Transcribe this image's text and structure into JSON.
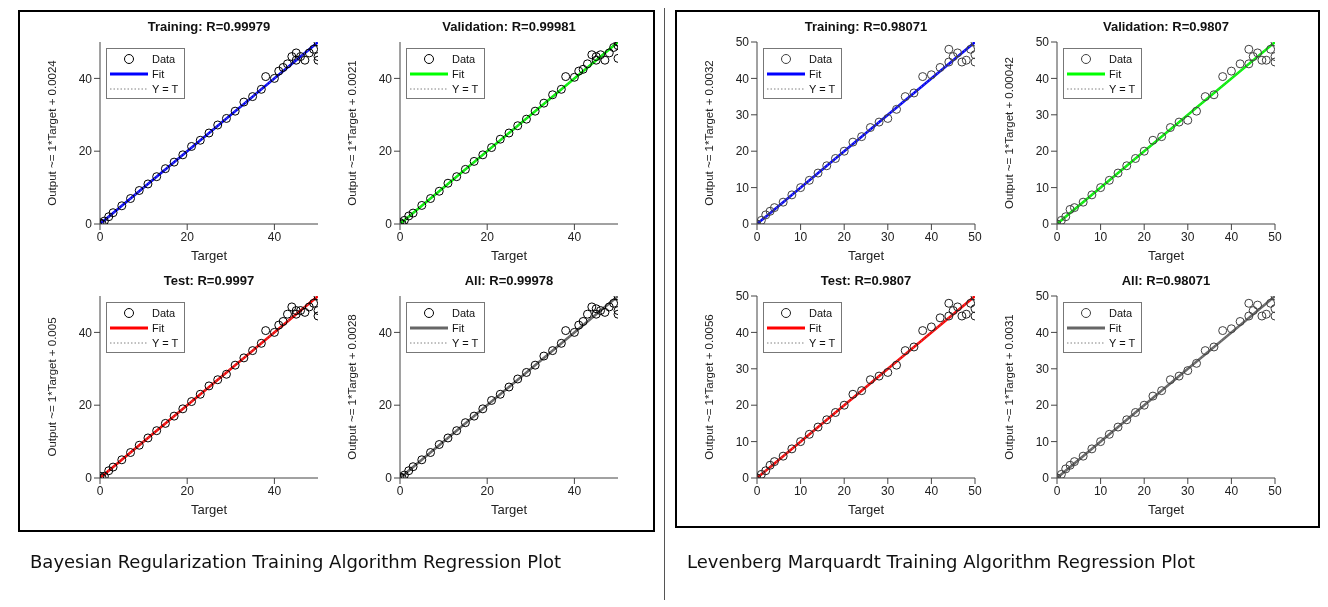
{
  "chart_data": [
    {
      "type": "scatter",
      "title": "Training: R=0.99979",
      "xlabel": "Target",
      "ylabel": "Output ~= 1*Target + 0.0024",
      "xlim": [
        0,
        50
      ],
      "ylim": [
        0,
        50
      ],
      "xticks": [
        0,
        20,
        40
      ],
      "yticks": [
        0,
        20,
        40
      ],
      "legend": "top left",
      "annotations": [
        "Bayesian Regularization Training Algorithm Regression Plot"
      ],
      "series": [
        {
          "name": "Data",
          "color": "#000000",
          "marker": "circle",
          "x": [
            0,
            0.5,
            1,
            2,
            3,
            5,
            7,
            9,
            11,
            13,
            15,
            17,
            19,
            21,
            23,
            25,
            27,
            29,
            31,
            33,
            35,
            37,
            38,
            40,
            41,
            42,
            43,
            44,
            45,
            45,
            46,
            47,
            48,
            49,
            50,
            50,
            50
          ],
          "values": [
            0.3,
            0,
            0.8,
            2,
            3.1,
            5,
            7,
            9.2,
            11,
            13,
            15.2,
            17,
            19,
            21.3,
            23,
            25,
            27.2,
            29,
            31,
            33.5,
            35,
            37,
            40.5,
            40,
            42,
            43,
            44,
            46,
            45,
            47,
            46,
            45,
            47,
            48,
            50,
            45,
            46
          ]
        },
        {
          "name": "Fit",
          "type": "line",
          "color": "#0000ff",
          "marker": "none",
          "line_style": "solid",
          "x": [
            0,
            50
          ],
          "values": [
            0,
            50
          ]
        },
        {
          "name": "Y = T",
          "type": "line",
          "color": "#808080",
          "marker": "none",
          "line_style": "dotted",
          "x": [
            0,
            50
          ],
          "values": [
            0,
            50
          ]
        }
      ]
    },
    {
      "type": "scatter",
      "title": "Validation: R=0.99981",
      "xlabel": "Target",
      "ylabel": "Output ~= 1*Target + 0.0021",
      "xlim": [
        0,
        50
      ],
      "ylim": [
        0,
        50
      ],
      "xticks": [
        0,
        20,
        40
      ],
      "yticks": [
        0,
        20,
        40
      ],
      "legend": "top left",
      "series": [
        {
          "name": "Data",
          "color": "#000000",
          "marker": "circle",
          "x": [
            0,
            0.5,
            1,
            2,
            3,
            5,
            7,
            9,
            11,
            13,
            15,
            17,
            19,
            21,
            23,
            25,
            27,
            29,
            31,
            33,
            35,
            37,
            38,
            40,
            41,
            42,
            43,
            44,
            45,
            45,
            46,
            47,
            48,
            49,
            50,
            50,
            50
          ],
          "values": [
            0.4,
            0,
            1,
            2.2,
            3,
            5.1,
            7,
            9,
            11.2,
            13,
            15,
            17.2,
            19,
            21,
            23.3,
            25,
            27,
            28.8,
            31,
            33.2,
            35.5,
            37,
            40.5,
            40.3,
            42,
            42.5,
            44,
            46.5,
            45,
            46,
            46.5,
            45,
            47,
            48.5,
            50,
            45.5,
            49
          ]
        },
        {
          "name": "Fit",
          "type": "line",
          "color": "#00ff00",
          "marker": "none",
          "line_style": "solid",
          "x": [
            0,
            50
          ],
          "values": [
            0,
            50
          ]
        },
        {
          "name": "Y = T",
          "type": "line",
          "color": "#808080",
          "marker": "none",
          "line_style": "dotted",
          "x": [
            0,
            50
          ],
          "values": [
            0,
            50
          ]
        }
      ]
    },
    {
      "type": "scatter",
      "title": "Test: R=0.9997",
      "xlabel": "Target",
      "ylabel": "Output ~= 1*Target + 0.005",
      "xlim": [
        0,
        50
      ],
      "ylim": [
        0,
        50
      ],
      "xticks": [
        0,
        20,
        40
      ],
      "yticks": [
        0,
        20,
        40
      ],
      "legend": "top left",
      "series": [
        {
          "name": "Data",
          "color": "#000000",
          "marker": "circle",
          "x": [
            0,
            0.5,
            1,
            2,
            3,
            5,
            7,
            9,
            11,
            13,
            15,
            17,
            19,
            21,
            23,
            25,
            27,
            29,
            31,
            33,
            35,
            37,
            38,
            40,
            41,
            42,
            43,
            44,
            45,
            45,
            46,
            47,
            48,
            49,
            50,
            50,
            50
          ],
          "values": [
            0.5,
            0,
            0.5,
            2,
            3,
            5,
            7,
            9,
            11,
            13,
            15,
            17,
            19,
            21,
            23,
            25.3,
            27,
            28.5,
            31,
            33,
            35,
            37,
            40.5,
            40,
            42,
            43,
            45,
            47,
            45,
            46,
            46,
            45.5,
            47,
            48,
            50,
            44.5,
            46
          ]
        },
        {
          "name": "Fit",
          "type": "line",
          "color": "#ff0000",
          "marker": "none",
          "line_style": "solid",
          "x": [
            0,
            50
          ],
          "values": [
            0,
            50
          ]
        },
        {
          "name": "Y = T",
          "type": "line",
          "color": "#808080",
          "marker": "none",
          "line_style": "dotted",
          "x": [
            0,
            50
          ],
          "values": [
            0,
            50
          ]
        }
      ]
    },
    {
      "type": "scatter",
      "title": "All: R=0.99978",
      "xlabel": "Target",
      "ylabel": "Output ~= 1*Target + 0.0028",
      "xlim": [
        0,
        50
      ],
      "ylim": [
        0,
        50
      ],
      "xticks": [
        0,
        20,
        40
      ],
      "yticks": [
        0,
        20,
        40
      ],
      "legend": "top left",
      "series": [
        {
          "name": "Data",
          "color": "#000000",
          "marker": "circle",
          "x": [
            0,
            0.5,
            1,
            2,
            3,
            5,
            7,
            9,
            11,
            13,
            15,
            17,
            19,
            21,
            23,
            25,
            27,
            29,
            31,
            33,
            35,
            37,
            38,
            40,
            41,
            42,
            43,
            44,
            45,
            45,
            46,
            47,
            48,
            49,
            50,
            50,
            50
          ],
          "values": [
            0.3,
            0,
            0.8,
            2,
            3.1,
            5,
            7,
            9.2,
            11,
            13,
            15.2,
            17,
            19,
            21.3,
            23,
            25,
            27.2,
            29,
            31,
            33.5,
            35,
            37,
            40.5,
            40,
            42,
            43,
            45,
            47,
            45,
            46.5,
            46,
            45.5,
            47,
            48,
            50,
            45,
            46
          ]
        },
        {
          "name": "Fit",
          "type": "line",
          "color": "#666666",
          "marker": "none",
          "line_style": "solid",
          "x": [
            0,
            50
          ],
          "values": [
            0,
            50
          ]
        },
        {
          "name": "Y = T",
          "type": "line",
          "color": "#808080",
          "marker": "none",
          "line_style": "dotted",
          "x": [
            0,
            50
          ],
          "values": [
            0,
            50
          ]
        }
      ]
    },
    {
      "type": "scatter",
      "title": "Training: R=0.98071",
      "xlabel": "Target",
      "ylabel": "Output ~= 1*Target + 0.0032",
      "xlim": [
        0,
        50
      ],
      "ylim": [
        0,
        50
      ],
      "xticks": [
        0,
        10,
        20,
        30,
        40,
        50
      ],
      "yticks": [
        0,
        10,
        20,
        30,
        40,
        50
      ],
      "legend": "top left",
      "annotations": [
        "Levenberg Marquardt Training Algorithm Regression Plot"
      ],
      "series": [
        {
          "name": "Data",
          "color": "#404040",
          "marker": "circle",
          "x": [
            0,
            1,
            2,
            3,
            4,
            6,
            8,
            10,
            12,
            14,
            16,
            18,
            20,
            22,
            24,
            26,
            28,
            30,
            32,
            34,
            36,
            38,
            40,
            42,
            44,
            44,
            45,
            46,
            47,
            48,
            49,
            50,
            50,
            50
          ],
          "values": [
            0,
            1,
            2.5,
            3.5,
            4.5,
            6,
            8,
            10,
            12,
            14,
            16,
            18,
            20,
            22.5,
            24,
            26.5,
            28,
            29,
            31.5,
            35,
            36,
            40.5,
            41,
            43,
            48,
            44.5,
            46,
            47,
            44.5,
            45,
            48,
            50,
            44.5,
            46.5
          ]
        },
        {
          "name": "Fit",
          "type": "line",
          "color": "#0000ff",
          "marker": "none",
          "line_style": "solid",
          "x": [
            0,
            50
          ],
          "values": [
            0,
            50
          ]
        },
        {
          "name": "Y = T",
          "type": "line",
          "color": "#808080",
          "marker": "none",
          "line_style": "dotted",
          "x": [
            0,
            50
          ],
          "values": [
            0,
            50
          ]
        }
      ]
    },
    {
      "type": "scatter",
      "title": "Validation: R=0.9807",
      "xlabel": "Target",
      "ylabel": "Output ~= 1*Target + 0.00042",
      "xlim": [
        0,
        50
      ],
      "ylim": [
        0,
        50
      ],
      "xticks": [
        0,
        10,
        20,
        30,
        40,
        50
      ],
      "yticks": [
        0,
        10,
        20,
        30,
        40,
        50
      ],
      "legend": "top left",
      "series": [
        {
          "name": "Data",
          "color": "#404040",
          "marker": "circle",
          "x": [
            0,
            1,
            2,
            3,
            4,
            6,
            8,
            10,
            12,
            14,
            16,
            18,
            20,
            22,
            24,
            26,
            28,
            30,
            32,
            34,
            36,
            38,
            40,
            42,
            44,
            44,
            45,
            46,
            47,
            48,
            49,
            50,
            50,
            50
          ],
          "values": [
            0,
            1,
            2,
            4,
            4.5,
            6,
            8,
            10,
            12,
            14,
            16,
            18,
            20,
            23,
            24,
            26.5,
            28,
            28.5,
            31,
            35,
            35.5,
            40.5,
            42,
            44,
            48,
            44,
            46,
            47,
            45,
            45,
            48,
            50,
            44.5,
            46
          ]
        },
        {
          "name": "Fit",
          "type": "line",
          "color": "#00ff00",
          "marker": "none",
          "line_style": "solid",
          "x": [
            0,
            50
          ],
          "values": [
            0,
            50
          ]
        },
        {
          "name": "Y = T",
          "type": "line",
          "color": "#808080",
          "marker": "none",
          "line_style": "dotted",
          "x": [
            0,
            50
          ],
          "values": [
            0,
            50
          ]
        }
      ]
    },
    {
      "type": "scatter",
      "title": "Test: R=0.9807",
      "xlabel": "Target",
      "ylabel": "Output ~= 1*Target + 0.0056",
      "xlim": [
        0,
        50
      ],
      "ylim": [
        0,
        50
      ],
      "xticks": [
        0,
        10,
        20,
        30,
        40,
        50
      ],
      "yticks": [
        0,
        10,
        20,
        30,
        40,
        50
      ],
      "legend": "top left",
      "series": [
        {
          "name": "Data",
          "color": "#202020",
          "marker": "circle",
          "x": [
            0,
            1,
            2,
            3,
            4,
            6,
            8,
            10,
            12,
            14,
            16,
            18,
            20,
            22,
            24,
            26,
            28,
            30,
            32,
            34,
            36,
            38,
            40,
            42,
            44,
            44,
            45,
            46,
            47,
            48,
            49,
            50,
            50,
            50
          ],
          "values": [
            0,
            1,
            2,
            3.5,
            4.5,
            6,
            8,
            10,
            12,
            14,
            16,
            18,
            20,
            23,
            24,
            27,
            28,
            29,
            31,
            35,
            36,
            40.5,
            41.5,
            44,
            48,
            44.5,
            46,
            47,
            44.5,
            45,
            48,
            50,
            44.5,
            46.5
          ]
        },
        {
          "name": "Fit",
          "type": "line",
          "color": "#ff0000",
          "marker": "none",
          "line_style": "solid",
          "x": [
            0,
            50
          ],
          "values": [
            0,
            50
          ]
        },
        {
          "name": "Y = T",
          "type": "line",
          "color": "#808080",
          "marker": "none",
          "line_style": "dotted",
          "x": [
            0,
            50
          ],
          "values": [
            0,
            50
          ]
        }
      ]
    },
    {
      "type": "scatter",
      "title": "All: R=0.98071",
      "xlabel": "Target",
      "ylabel": "Output ~= 1*Target + 0.0031",
      "xlim": [
        0,
        50
      ],
      "ylim": [
        0,
        50
      ],
      "xticks": [
        0,
        10,
        20,
        30,
        40,
        50
      ],
      "yticks": [
        0,
        10,
        20,
        30,
        40,
        50
      ],
      "legend": "top left",
      "series": [
        {
          "name": "Data",
          "color": "#404040",
          "marker": "circle",
          "x": [
            0,
            1,
            2,
            3,
            4,
            6,
            8,
            10,
            12,
            14,
            16,
            18,
            20,
            22,
            24,
            26,
            28,
            30,
            32,
            34,
            36,
            38,
            40,
            42,
            44,
            44,
            45,
            46,
            47,
            48,
            49,
            50,
            50,
            50
          ],
          "values": [
            0,
            1,
            2.5,
            3.5,
            4.5,
            6,
            8,
            10,
            12,
            14,
            16,
            18,
            20,
            22.5,
            24,
            27,
            28,
            29.5,
            31.5,
            35,
            36,
            40.5,
            41,
            43,
            48,
            44.5,
            46,
            47.5,
            44.5,
            45,
            48,
            50,
            44.5,
            46.5
          ]
        },
        {
          "name": "Fit",
          "type": "line",
          "color": "#666666",
          "marker": "none",
          "line_style": "solid",
          "x": [
            0,
            50
          ],
          "values": [
            0,
            50
          ]
        },
        {
          "name": "Y = T",
          "type": "line",
          "color": "#808080",
          "marker": "none",
          "line_style": "dotted",
          "x": [
            0,
            50
          ],
          "values": [
            0,
            50
          ]
        }
      ]
    }
  ]
}
